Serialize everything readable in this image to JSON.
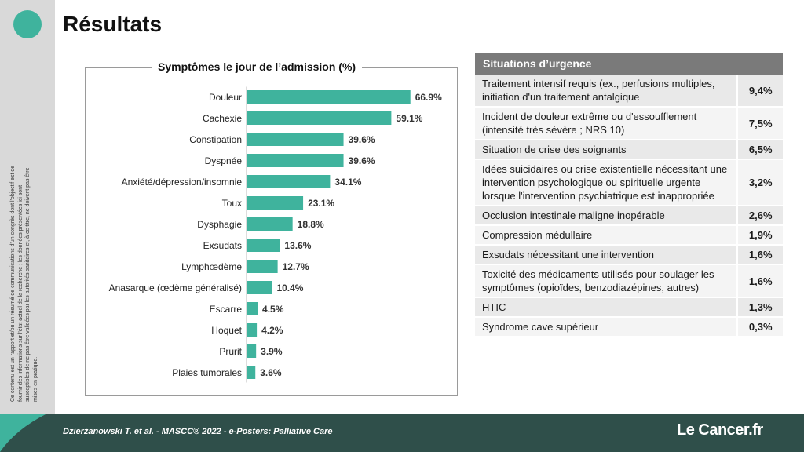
{
  "sidebar": {
    "disclaimer": "Ce contenu est un rapport et/ou un résumé de communications d'un congrès dont l'objectif est de fournir des informations sur l'état actuel de la recherche ; les données présentées ici sont susceptibles de ne pas être validées par les autorités sanitaires et, à ce titre, ne doivent pas être mises en pratique."
  },
  "page": {
    "title": "Résultats"
  },
  "chart_title": "Symptômes le jour de l’admission (%)",
  "chart_data": {
    "type": "bar",
    "orientation": "horizontal",
    "title": "Symptômes le jour de l’admission (%)",
    "categories": [
      "Douleur",
      "Cachexie",
      "Constipation",
      "Dyspnée",
      "Anxiété/dépression/insomnie",
      "Toux",
      "Dysphagie",
      "Exsudats",
      "Lymphœdème",
      "Anasarque (œdème généralisé)",
      "Escarre",
      "Hoquet",
      "Prurit",
      "Plaies tumorales"
    ],
    "values": [
      66.9,
      59.1,
      39.6,
      39.6,
      34.1,
      23.1,
      18.8,
      13.6,
      12.7,
      10.4,
      4.5,
      4.2,
      3.9,
      3.6
    ],
    "value_labels": [
      "66.9%",
      "59.1%",
      "39.6%",
      "39.6%",
      "34.1%",
      "23.1%",
      "18.8%",
      "13.6%",
      "12.7%",
      "10.4%",
      "4.5%",
      "4.2%",
      "3.9%",
      "3.6%"
    ],
    "color": "#3fb39d",
    "xlim": [
      0,
      100
    ],
    "grid": false,
    "legend": "none"
  },
  "table": {
    "header": "Situations d’urgence",
    "rows": [
      {
        "label": "Traitement intensif requis (ex., perfusions multiples, initiation d'un traitement antalgique",
        "value": "9,4%"
      },
      {
        "label": "Incident de douleur extrême ou d'essoufflement (intensité très sévère ; NRS 10)",
        "value": "7,5%"
      },
      {
        "label": "Situation de crise des soignants",
        "value": "6,5%"
      },
      {
        "label": "Idées suicidaires ou crise existentielle nécessitant une intervention psychologique ou spirituelle urgente lorsque l'intervention psychiatrique est inappropriée",
        "value": "3,2%"
      },
      {
        "label": "Occlusion intestinale maligne inopérable",
        "value": "2,6%"
      },
      {
        "label": "Compression médullaire",
        "value": "1,9%"
      },
      {
        "label": "Exsudats nécessitant une intervention",
        "value": "1,6%"
      },
      {
        "label": "Toxicité des médicaments utilisés pour soulager les symptômes (opioïdes, benzodiazépines, autres)",
        "value": "1,6%"
      },
      {
        "label": "HTIC",
        "value": "1,3%"
      },
      {
        "label": "Syndrome cave supérieur",
        "value": "0,3%"
      }
    ]
  },
  "footer": {
    "citation": "Dzierżanowski T. et al. - MASCC® 2022 - e-Posters: Palliative Care",
    "brand": "Le Cancer.fr"
  },
  "colors": {
    "accent": "#3fb39d",
    "footer": "#2f4f4a",
    "table_header": "#7a7a7a"
  }
}
